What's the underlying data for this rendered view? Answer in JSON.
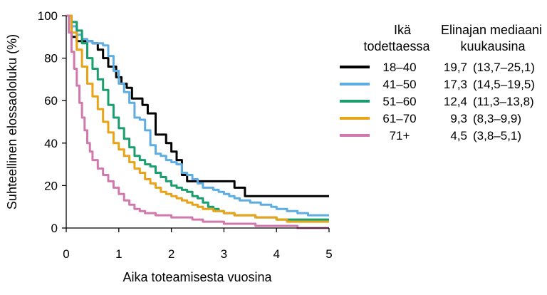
{
  "chart_data": {
    "type": "line",
    "step": true,
    "xlabel": "Aika toteamisesta vuosina",
    "ylabel": "Suhteellinen elossaololuku (%)",
    "xlim": [
      0,
      5
    ],
    "ylim": [
      0,
      100
    ],
    "x_ticks": [
      "0",
      "1",
      "2",
      "3",
      "4",
      "5"
    ],
    "y_ticks": [
      "0",
      "20",
      "40",
      "60",
      "80",
      "100"
    ],
    "grid": false,
    "legend": {
      "placement": "right",
      "header_group": [
        "Ikä",
        "todettaessa"
      ],
      "header_median": [
        "Elinajan mediaani",
        "kuukausina"
      ]
    },
    "series": [
      {
        "name": "18–40",
        "median": "19,7",
        "ci": "(13,7–25,1)",
        "color": "#000000",
        "x": [
          0,
          0.1,
          0.2,
          0.3,
          0.5,
          0.6,
          0.7,
          0.8,
          0.95,
          1.05,
          1.15,
          1.25,
          1.35,
          1.45,
          1.55,
          1.7,
          1.8,
          1.9,
          2.0,
          2.1,
          2.2,
          2.3,
          2.4,
          2.5,
          2.6,
          3.0,
          3.1,
          3.2,
          3.3,
          3.4,
          3.5,
          5.0
        ],
        "y": [
          100,
          90,
          88,
          88,
          87,
          84,
          80,
          76,
          71,
          68,
          66,
          61,
          61,
          58,
          54,
          44,
          44,
          40,
          36,
          32,
          25,
          22,
          22,
          22,
          22,
          22,
          22,
          19,
          19,
          15,
          15,
          15
        ]
      },
      {
        "name": "41–50",
        "median": "17,3",
        "ci": "(14,5–19,5)",
        "color": "#5dade2",
        "x": [
          0,
          0.1,
          0.2,
          0.3,
          0.4,
          0.5,
          0.6,
          0.7,
          0.8,
          0.9,
          1.0,
          1.1,
          1.2,
          1.3,
          1.4,
          1.5,
          1.6,
          1.7,
          1.8,
          1.9,
          2.0,
          2.1,
          2.2,
          2.3,
          2.4,
          2.5,
          2.6,
          2.7,
          2.8,
          2.9,
          3.0,
          3.1,
          3.2,
          3.3,
          3.5,
          3.7,
          3.9,
          4.0,
          4.2,
          4.4,
          4.6,
          4.8,
          5.0
        ],
        "y": [
          100,
          95,
          91,
          89,
          88,
          87,
          87,
          86,
          81,
          74,
          68,
          64,
          59,
          52,
          51,
          46,
          39,
          35,
          34,
          32,
          31,
          30,
          26,
          25,
          23,
          21,
          19,
          19,
          18,
          17,
          16,
          15,
          14,
          13,
          12,
          11,
          10,
          9,
          8,
          7,
          6,
          6,
          6
        ]
      },
      {
        "name": "51–60",
        "median": "12,4",
        "ci": "(11,3–13,8)",
        "color": "#1a9e6e",
        "x": [
          0,
          0.1,
          0.2,
          0.3,
          0.4,
          0.5,
          0.6,
          0.7,
          0.8,
          0.9,
          1.0,
          1.1,
          1.2,
          1.3,
          1.4,
          1.5,
          1.6,
          1.7,
          1.8,
          1.9,
          2.0,
          2.1,
          2.2,
          2.3,
          2.4,
          2.5,
          2.6,
          2.7,
          2.8,
          2.9,
          3.0,
          3.2,
          3.4,
          3.6,
          3.8,
          4.0,
          4.2,
          4.4,
          4.6,
          4.8,
          5.0
        ],
        "y": [
          100,
          97,
          93,
          87,
          80,
          75,
          70,
          65,
          58,
          52,
          47,
          42,
          38,
          34,
          32,
          30,
          29,
          26,
          24,
          22,
          20,
          19,
          18,
          17,
          15,
          14,
          12,
          10,
          9,
          8,
          7,
          6,
          6,
          5,
          5,
          4,
          4,
          4,
          4,
          4,
          4
        ]
      },
      {
        "name": "61–70",
        "median": "9,3",
        "ci": "(8,3–9,9)",
        "color": "#e8a316",
        "x": [
          0,
          0.1,
          0.2,
          0.3,
          0.4,
          0.5,
          0.6,
          0.7,
          0.8,
          0.9,
          1.0,
          1.1,
          1.2,
          1.3,
          1.4,
          1.5,
          1.6,
          1.7,
          1.8,
          1.9,
          2.0,
          2.1,
          2.2,
          2.3,
          2.4,
          2.5,
          2.6,
          2.8,
          3.0,
          3.2,
          3.4,
          3.6,
          3.8,
          4.0,
          4.2,
          4.4,
          4.6,
          4.8,
          5.0
        ],
        "y": [
          100,
          92,
          84,
          76,
          68,
          62,
          56,
          50,
          45,
          40,
          37,
          34,
          31,
          28,
          26,
          23,
          21,
          19,
          17,
          16,
          15,
          14,
          13,
          12,
          11,
          10,
          9,
          8,
          7,
          6,
          6,
          5,
          5,
          4,
          3,
          3,
          3,
          3,
          3
        ]
      },
      {
        "name": "71+",
        "median": "4,5",
        "ci": "(3,8–5,1)",
        "color": "#d179ac",
        "x": [
          0,
          0.05,
          0.1,
          0.15,
          0.2,
          0.25,
          0.3,
          0.35,
          0.4,
          0.45,
          0.5,
          0.6,
          0.7,
          0.8,
          0.9,
          1.0,
          1.1,
          1.2,
          1.3,
          1.4,
          1.5,
          1.6,
          1.7,
          1.8,
          2.0,
          2.2,
          2.4,
          2.6,
          2.8,
          3.0,
          3.2,
          3.4,
          3.6,
          3.8,
          4.0,
          4.2,
          4.4,
          4.6,
          5.0
        ],
        "y": [
          100,
          92,
          83,
          75,
          67,
          59,
          52,
          46,
          40,
          36,
          32,
          28,
          25,
          22,
          19,
          16,
          13,
          11,
          9,
          8,
          7,
          7,
          6,
          6,
          5,
          5,
          4,
          3,
          3,
          2,
          2,
          2,
          1,
          1,
          1,
          1,
          0,
          0,
          0
        ]
      }
    ]
  }
}
